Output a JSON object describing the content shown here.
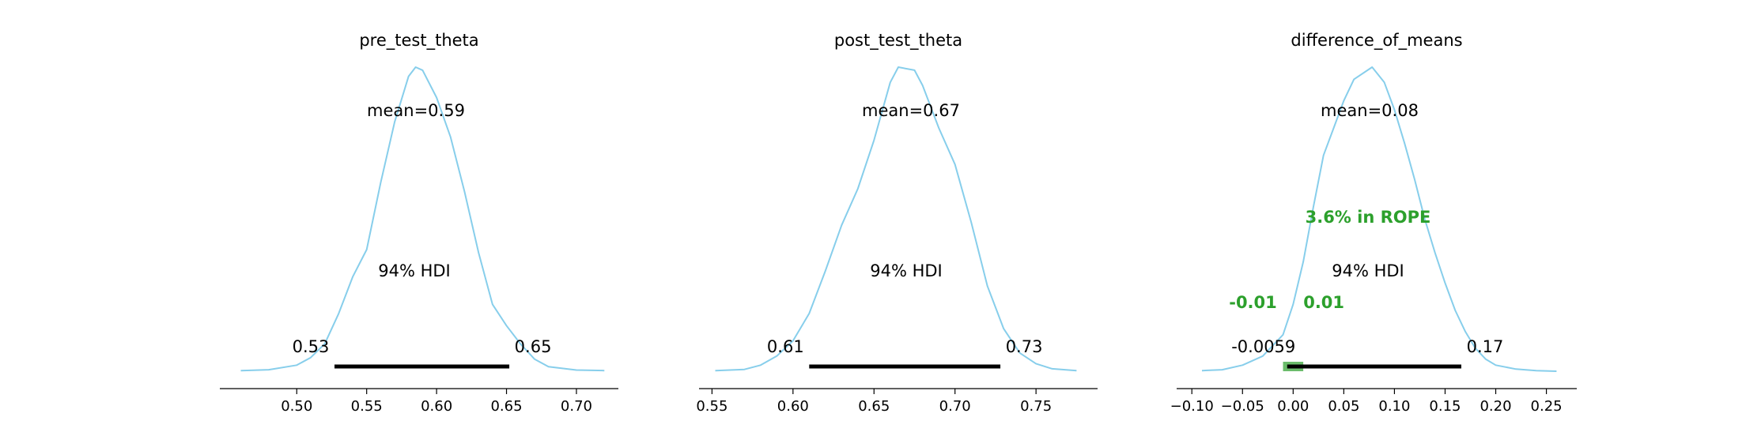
{
  "chart_data": [
    {
      "type": "area",
      "title": "pre_test_theta",
      "xlim": [
        0.445,
        0.73
      ],
      "xticks": [
        "0.50",
        "0.55",
        "0.60",
        "0.65",
        "0.70"
      ],
      "xtick_values": [
        0.5,
        0.55,
        0.6,
        0.65,
        0.7
      ],
      "color": "#87ceeb",
      "density": [
        [
          0.46,
          0.002
        ],
        [
          0.48,
          0.005
        ],
        [
          0.5,
          0.02
        ],
        [
          0.51,
          0.045
        ],
        [
          0.52,
          0.09
        ],
        [
          0.53,
          0.19
        ],
        [
          0.54,
          0.31
        ],
        [
          0.55,
          0.4
        ],
        [
          0.56,
          0.62
        ],
        [
          0.57,
          0.82
        ],
        [
          0.58,
          0.97
        ],
        [
          0.585,
          1.0
        ],
        [
          0.59,
          0.99
        ],
        [
          0.6,
          0.9
        ],
        [
          0.61,
          0.77
        ],
        [
          0.62,
          0.59
        ],
        [
          0.63,
          0.39
        ],
        [
          0.64,
          0.22
        ],
        [
          0.65,
          0.15
        ],
        [
          0.66,
          0.09
        ],
        [
          0.67,
          0.04
        ],
        [
          0.68,
          0.015
        ],
        [
          0.7,
          0.004
        ],
        [
          0.72,
          0.002
        ]
      ],
      "mean_label": "mean=0.59",
      "hdi_label": "94% HDI",
      "hdi": [
        0.527,
        0.652
      ],
      "hdi_low_label": "0.53",
      "hdi_high_label": "0.65"
    },
    {
      "type": "area",
      "title": "post_test_theta",
      "xlim": [
        0.542,
        0.788
      ],
      "xticks": [
        "0.55",
        "0.60",
        "0.65",
        "0.70",
        "0.75"
      ],
      "xtick_values": [
        0.55,
        0.6,
        0.65,
        0.7,
        0.75
      ],
      "color": "#87ceeb",
      "density": [
        [
          0.552,
          0.002
        ],
        [
          0.57,
          0.006
        ],
        [
          0.58,
          0.02
        ],
        [
          0.59,
          0.05
        ],
        [
          0.6,
          0.1
        ],
        [
          0.61,
          0.19
        ],
        [
          0.62,
          0.33
        ],
        [
          0.63,
          0.48
        ],
        [
          0.64,
          0.6
        ],
        [
          0.65,
          0.76
        ],
        [
          0.66,
          0.95
        ],
        [
          0.665,
          1.0
        ],
        [
          0.675,
          0.99
        ],
        [
          0.68,
          0.94
        ],
        [
          0.69,
          0.8
        ],
        [
          0.7,
          0.68
        ],
        [
          0.71,
          0.49
        ],
        [
          0.72,
          0.28
        ],
        [
          0.73,
          0.14
        ],
        [
          0.74,
          0.06
        ],
        [
          0.75,
          0.025
        ],
        [
          0.76,
          0.008
        ],
        [
          0.775,
          0.002
        ]
      ],
      "mean_label": "mean=0.67",
      "hdi_label": "94% HDI",
      "hdi": [
        0.61,
        0.728
      ],
      "hdi_low_label": "0.61",
      "hdi_high_label": "0.73"
    },
    {
      "type": "area",
      "title": "difference_of_means",
      "xlim": [
        -0.115,
        0.28
      ],
      "xticks": [
        "−0.10",
        "−0.05",
        "0.00",
        "0.05",
        "0.10",
        "0.15",
        "0.20",
        "0.25"
      ],
      "xtick_values": [
        -0.1,
        -0.05,
        0.0,
        0.05,
        0.1,
        0.15,
        0.2,
        0.25
      ],
      "color": "#87ceeb",
      "density": [
        [
          -0.09,
          0.002
        ],
        [
          -0.07,
          0.005
        ],
        [
          -0.05,
          0.02
        ],
        [
          -0.03,
          0.05
        ],
        [
          -0.01,
          0.12
        ],
        [
          0.0,
          0.22
        ],
        [
          0.01,
          0.36
        ],
        [
          0.02,
          0.54
        ],
        [
          0.03,
          0.71
        ],
        [
          0.04,
          0.8
        ],
        [
          0.05,
          0.89
        ],
        [
          0.06,
          0.96
        ],
        [
          0.078,
          1.0
        ],
        [
          0.09,
          0.95
        ],
        [
          0.1,
          0.86
        ],
        [
          0.11,
          0.75
        ],
        [
          0.12,
          0.63
        ],
        [
          0.13,
          0.5
        ],
        [
          0.14,
          0.39
        ],
        [
          0.15,
          0.29
        ],
        [
          0.16,
          0.2
        ],
        [
          0.17,
          0.13
        ],
        [
          0.18,
          0.075
        ],
        [
          0.19,
          0.04
        ],
        [
          0.2,
          0.02
        ],
        [
          0.22,
          0.007
        ],
        [
          0.24,
          0.002
        ],
        [
          0.26,
          0.0
        ]
      ],
      "mean_label": "mean=0.08",
      "hdi_label": "94% HDI",
      "hdi": [
        -0.0059,
        0.166
      ],
      "hdi_low_label": "-0.0059",
      "hdi_high_label": "0.17",
      "rope": [
        -0.01,
        0.01
      ],
      "rope_label": "3.6% in ROPE",
      "rope_low_label": "-0.01",
      "rope_high_label": "0.01",
      "rope_color": "#2ca02c"
    }
  ]
}
